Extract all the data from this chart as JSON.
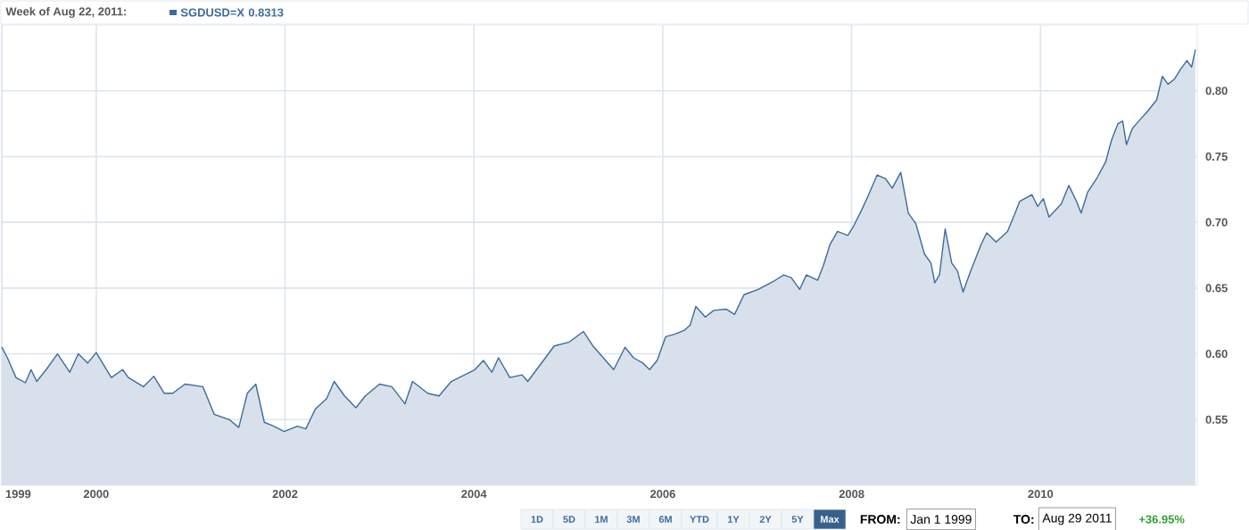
{
  "chart_data": {
    "type": "area",
    "title": "Week of Aug 22, 2011:",
    "x": [
      1999.0,
      1999.06,
      1999.15,
      1999.25,
      1999.31,
      1999.37,
      1999.47,
      1999.59,
      1999.72,
      1999.81,
      1999.91,
      2000.0,
      2000.16,
      2000.28,
      2000.34,
      2000.5,
      2000.61,
      2000.72,
      2000.81,
      2000.94,
      2001.13,
      2001.25,
      2001.41,
      2001.51,
      2001.6,
      2001.69,
      2001.78,
      2001.88,
      2001.99,
      2002.13,
      2002.22,
      2002.32,
      2002.44,
      2002.52,
      2002.63,
      2002.75,
      2002.85,
      2003.0,
      2003.13,
      2003.27,
      2003.35,
      2003.51,
      2003.63,
      2003.76,
      2004.01,
      2004.1,
      2004.19,
      2004.26,
      2004.38,
      2004.51,
      2004.57,
      2004.85,
      2005.01,
      2005.16,
      2005.26,
      2005.48,
      2005.6,
      2005.69,
      2005.79,
      2005.86,
      2005.94,
      2006.03,
      2006.13,
      2006.23,
      2006.29,
      2006.35,
      2006.45,
      2006.54,
      2006.67,
      2006.76,
      2006.86,
      2007.01,
      2007.17,
      2007.28,
      2007.36,
      2007.45,
      2007.52,
      2007.64,
      2007.7,
      2007.77,
      2007.85,
      2007.96,
      2008.02,
      2008.11,
      2008.18,
      2008.27,
      2008.36,
      2008.43,
      2008.52,
      2008.6,
      2008.68,
      2008.77,
      2008.84,
      2008.88,
      2008.93,
      2008.99,
      2009.06,
      2009.12,
      2009.18,
      2009.26,
      2009.37,
      2009.43,
      2009.53,
      2009.65,
      2009.72,
      2009.78,
      2009.91,
      2009.97,
      2010.03,
      2010.09,
      2010.22,
      2010.3,
      2010.38,
      2010.43,
      2010.5,
      2010.6,
      2010.69,
      2010.75,
      2010.82,
      2010.87,
      2010.91,
      2010.97,
      2011.04,
      2011.13,
      2011.23,
      2011.29,
      2011.35,
      2011.42,
      2011.48,
      2011.55,
      2011.6,
      2011.64
    ],
    "series": [
      {
        "name": "SGDUSD=X",
        "color": "#3d6b9c",
        "values": [
          0.605,
          0.597,
          0.582,
          0.578,
          0.588,
          0.579,
          0.588,
          0.6,
          0.586,
          0.6,
          0.593,
          0.601,
          0.582,
          0.588,
          0.582,
          0.575,
          0.583,
          0.57,
          0.57,
          0.577,
          0.575,
          0.554,
          0.55,
          0.544,
          0.57,
          0.577,
          0.548,
          0.545,
          0.541,
          0.545,
          0.543,
          0.558,
          0.566,
          0.579,
          0.568,
          0.559,
          0.568,
          0.577,
          0.575,
          0.562,
          0.579,
          0.57,
          0.568,
          0.579,
          0.588,
          0.595,
          0.586,
          0.597,
          0.582,
          0.584,
          0.579,
          0.606,
          0.609,
          0.617,
          0.606,
          0.588,
          0.605,
          0.597,
          0.593,
          0.588,
          0.595,
          0.613,
          0.615,
          0.618,
          0.622,
          0.636,
          0.628,
          0.633,
          0.634,
          0.63,
          0.645,
          0.649,
          0.655,
          0.66,
          0.658,
          0.649,
          0.66,
          0.656,
          0.667,
          0.683,
          0.693,
          0.69,
          0.697,
          0.71,
          0.721,
          0.736,
          0.733,
          0.726,
          0.738,
          0.707,
          0.699,
          0.676,
          0.669,
          0.654,
          0.66,
          0.695,
          0.669,
          0.663,
          0.647,
          0.663,
          0.683,
          0.692,
          0.685,
          0.693,
          0.705,
          0.716,
          0.721,
          0.712,
          0.718,
          0.704,
          0.714,
          0.728,
          0.716,
          0.707,
          0.723,
          0.734,
          0.746,
          0.762,
          0.775,
          0.777,
          0.759,
          0.771,
          0.777,
          0.784,
          0.793,
          0.811,
          0.805,
          0.809,
          0.816,
          0.823,
          0.818,
          0.8313
        ]
      }
    ],
    "xlim": [
      1999.0,
      2011.66
    ],
    "xticks": [
      1999,
      2000,
      2002,
      2004,
      2006,
      2008,
      2010
    ],
    "ylim": [
      0.5,
      0.85
    ],
    "yticks": [
      {
        "value": 0.55,
        "label": "0.55"
      },
      {
        "value": 0.6,
        "label": "0.60"
      },
      {
        "value": 0.65,
        "label": "0.65"
      },
      {
        "value": 0.7,
        "label": "0.70"
      },
      {
        "value": 0.75,
        "label": "0.75"
      },
      {
        "value": 0.8,
        "label": "0.80"
      }
    ],
    "grid": true,
    "legend": "top left",
    "annotations": [
      "0.8313",
      "1D",
      "5D",
      "1M",
      "3M",
      "6M",
      "YTD",
      "1Y",
      "2Y",
      "5Y",
      "Max",
      "FROM:",
      "Jan 1 1999",
      "TO:",
      "Aug 29 2011",
      "+36.95%"
    ]
  }
}
